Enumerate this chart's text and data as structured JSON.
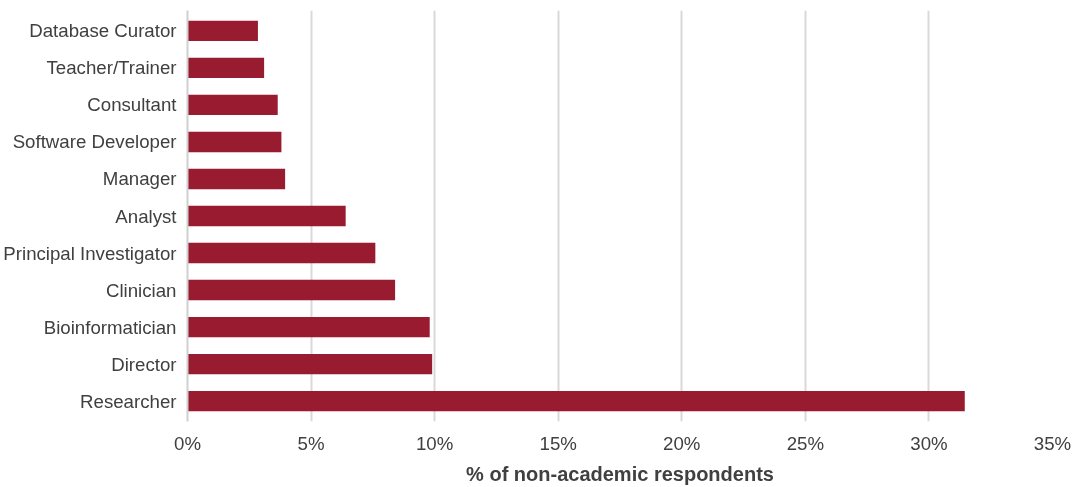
{
  "chart_data": {
    "type": "bar",
    "orientation": "horizontal",
    "xlabel": "% of non-academic respondents",
    "categories": [
      "Database Curator",
      "Teacher/Trainer",
      "Consultant",
      "Software Developer",
      "Manager",
      "Analyst",
      "Principal Investigator",
      "Clinician",
      "Bioinformatician",
      "Director",
      "Researcher"
    ],
    "values": [
      2.85,
      3.1,
      3.65,
      3.8,
      3.95,
      6.4,
      7.6,
      8.4,
      9.8,
      9.9,
      31.45
    ],
    "color": "#981b30",
    "xlim": [
      0,
      35
    ],
    "xticks": [
      {
        "value": 0,
        "label": "0%"
      },
      {
        "value": 5,
        "label": "5%"
      },
      {
        "value": 10,
        "label": "10%"
      },
      {
        "value": 15,
        "label": "15%"
      },
      {
        "value": 20,
        "label": "20%"
      },
      {
        "value": 25,
        "label": "25%"
      },
      {
        "value": 30,
        "label": "30%"
      },
      {
        "value": 35,
        "label": "35%"
      }
    ],
    "grid": "x"
  }
}
